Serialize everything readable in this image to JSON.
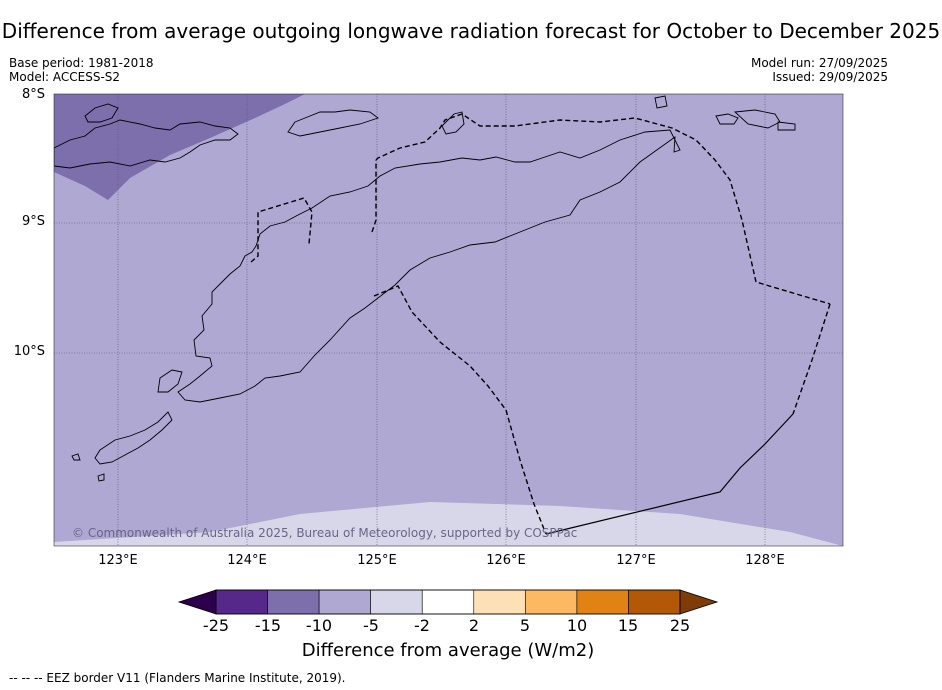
{
  "title": "Difference from average outgoing longwave radiation forecast for October to December 2025",
  "meta": {
    "base_period": "Base period: 1981-2018",
    "model": "Model: ACCESS-S2",
    "model_run": "Model run: 27/09/2025",
    "issued": "Issued: 29/09/2025"
  },
  "axes": {
    "lat_labels": [
      "8°S",
      "9°S",
      "10°S"
    ],
    "lon_labels": [
      "123°E",
      "124°E",
      "125°E",
      "126°E",
      "127°E",
      "128°E"
    ]
  },
  "copyright": "© Commonwealth of Australia 2025, Bureau of Meteorology, supported by COSPPac",
  "colorbar": {
    "ticks": [
      "-25",
      "-15",
      "-10",
      "-5",
      "-2",
      "2",
      "5",
      "10",
      "15",
      "25"
    ],
    "colors": [
      "#56288a",
      "#7c6fac",
      "#aea8d2",
      "#d8d7ea",
      "#ffffff",
      "#fee0b6",
      "#fdb863",
      "#e08214",
      "#b35806"
    ],
    "under_color": "#2d004b",
    "over_color": "#7f3b08",
    "label": "Difference from average (W/m2)"
  },
  "map_colors": {
    "dark_zone": "#7c6fac",
    "mid_zone": "#aea8d2",
    "light_zone": "#d8d7ea"
  },
  "footnote": "-- -- -- EEZ border V11 (Flanders Marine Institute, 2019)."
}
